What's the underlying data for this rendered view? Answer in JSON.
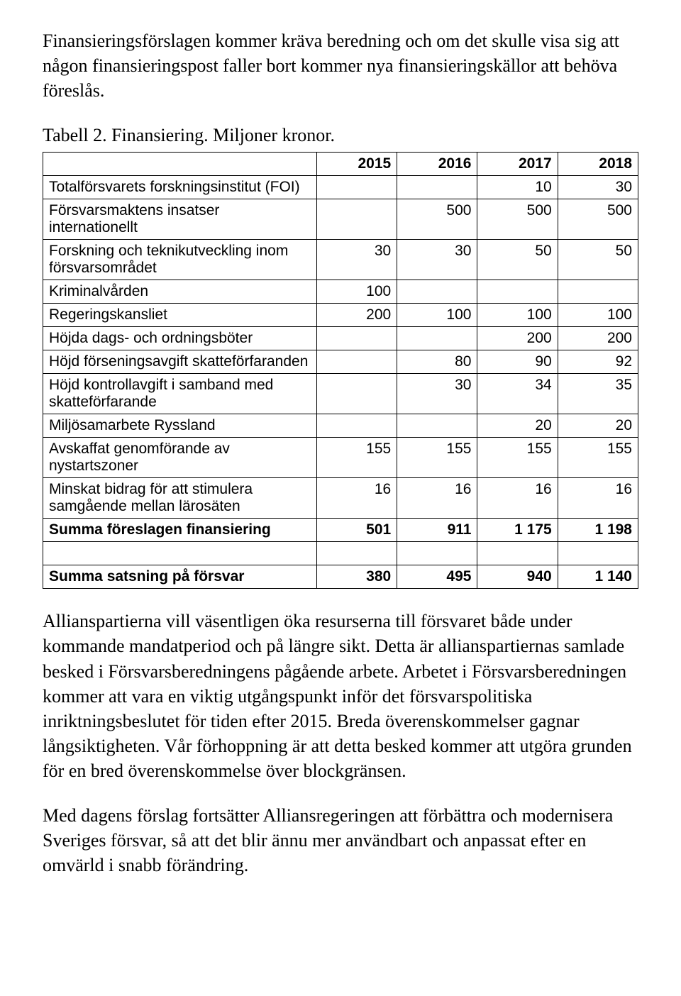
{
  "intro": "Finansieringsförslagen kommer kräva beredning och om det skulle visa sig att någon finansieringspost faller bort kommer nya finansieringskällor att behöva föreslås.",
  "tableTitle": "Tabell 2. Finansiering. Miljoner kronor.",
  "table": {
    "headers": [
      "",
      "2015",
      "2016",
      "2017",
      "2018"
    ],
    "rows": [
      {
        "label": "Totalförsvarets forskningsinstitut (FOI)",
        "cells": [
          "",
          "",
          "10",
          "30"
        ],
        "bold": false
      },
      {
        "label": "Försvarsmaktens insatser internationellt",
        "cells": [
          "",
          "500",
          "500",
          "500"
        ],
        "bold": false
      },
      {
        "label": "Forskning och teknikutveckling inom försvarsområdet",
        "cells": [
          "30",
          "30",
          "50",
          "50"
        ],
        "bold": false
      },
      {
        "label": "Kriminalvården",
        "cells": [
          "100",
          "",
          "",
          ""
        ],
        "bold": false
      },
      {
        "label": "Regeringskansliet",
        "cells": [
          "200",
          "100",
          "100",
          "100"
        ],
        "bold": false
      },
      {
        "label": "Höjda dags- och ordningsböter",
        "cells": [
          "",
          "",
          "200",
          "200"
        ],
        "bold": false
      },
      {
        "label": "Höjd förseningsavgift skatteförfaranden",
        "cells": [
          "",
          "80",
          "90",
          "92"
        ],
        "bold": false
      },
      {
        "label": "Höjd kontrollavgift i samband med skatteförfarande",
        "cells": [
          "",
          "30",
          "34",
          "35"
        ],
        "bold": false
      },
      {
        "label": "Miljösamarbete Ryssland",
        "cells": [
          "",
          "",
          "20",
          "20"
        ],
        "bold": false
      },
      {
        "label": "Avskaffat genomförande av nystartszoner",
        "cells": [
          "155",
          "155",
          "155",
          "155"
        ],
        "bold": false
      },
      {
        "label": "Minskat bidrag för att stimulera samgående mellan lärosäten",
        "cells": [
          "16",
          "16",
          "16",
          "16"
        ],
        "bold": false
      },
      {
        "label": "Summa föreslagen finansiering",
        "cells": [
          "501",
          "911",
          "1 175",
          "1 198"
        ],
        "bold": true
      },
      {
        "label": "",
        "cells": [
          "",
          "",
          "",
          ""
        ],
        "bold": false
      },
      {
        "label": "Summa satsning på försvar",
        "cells": [
          "380",
          "495",
          "940",
          "1 140"
        ],
        "bold": true
      }
    ],
    "colWidths": [
      "46%",
      "13.5%",
      "13.5%",
      "13.5%",
      "13.5%"
    ],
    "borderColor": "#000000",
    "headerFontWeight": "bold",
    "fontFamily": "Arial",
    "fontSize": 21
  },
  "body1": "Allianspartierna vill väsentligen öka resurserna till försvaret både under kommande mandatperiod och på längre sikt. Detta är allianspartiernas samlade besked i Försvarsberedningens pågående arbete. Arbetet i Försvarsberedningen kommer att vara en viktig utgångspunkt inför det försvarspolitiska inriktningsbeslutet för tiden efter 2015. Breda överenskommelser gagnar långsiktigheten. Vår förhoppning är att detta besked kommer att utgöra grunden för en bred överenskommelse över blockgränsen.",
  "body2": "Med dagens förslag fortsätter Alliansregeringen att förbättra och modernisera Sveriges försvar, så att det blir ännu mer användbart och anpassat efter en omvärld i snabb förändring."
}
